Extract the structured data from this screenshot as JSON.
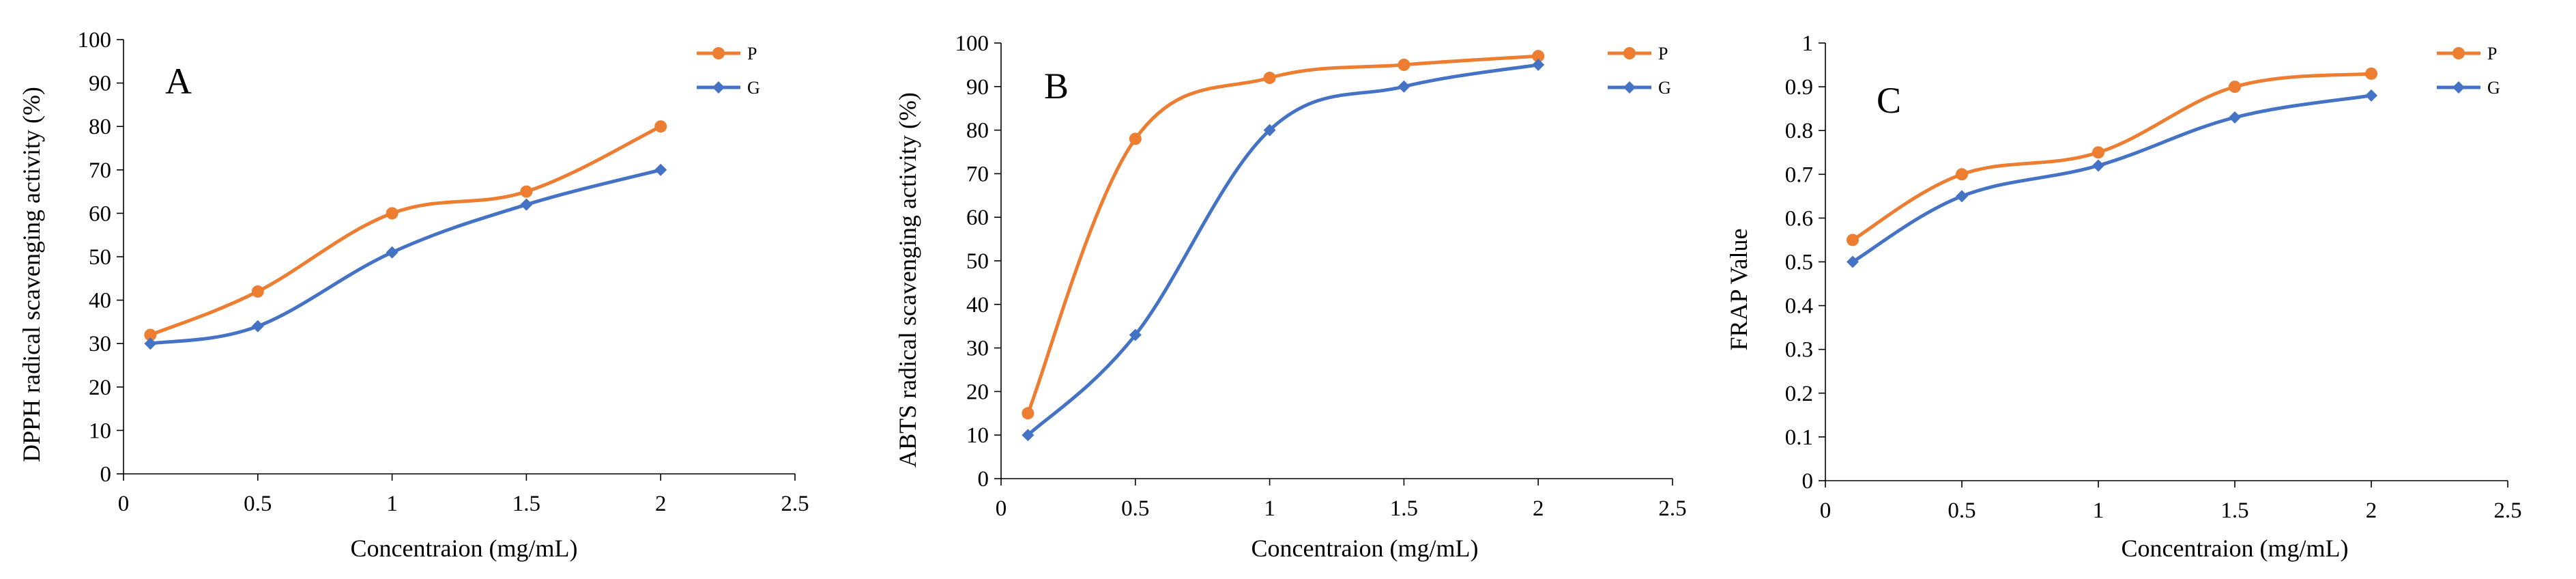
{
  "colors": {
    "P": "#ED7D31",
    "G": "#4472C4",
    "axis": "#000000"
  },
  "chart_data": [
    {
      "type": "line",
      "panel_label": "A",
      "title": "",
      "xlabel": "Concentraion (mg/mL)",
      "ylabel": "DPPH radical scavenging activity (%)",
      "xlim": [
        0,
        2.5
      ],
      "ylim": [
        0,
        100
      ],
      "x_ticks": [
        "0",
        "0.5",
        "1",
        "1.5",
        "2",
        "2.5"
      ],
      "y_ticks": [
        "0",
        "10",
        "20",
        "30",
        "40",
        "50",
        "60",
        "70",
        "80",
        "90",
        "100"
      ],
      "x": [
        0.1,
        0.5,
        1,
        1.5,
        2
      ],
      "grid": false,
      "legend": "top-right",
      "series": [
        {
          "name": "P",
          "marker": "circle",
          "values": [
            32,
            42,
            60,
            65,
            80
          ]
        },
        {
          "name": "G",
          "marker": "diamond",
          "values": [
            30,
            34,
            51,
            62,
            70
          ]
        }
      ]
    },
    {
      "type": "line",
      "panel_label": "B",
      "title": "",
      "xlabel": "Concentraion (mg/mL)",
      "ylabel": "ABTS radical scavenging activity (%)",
      "xlim": [
        0,
        2.5
      ],
      "ylim": [
        0,
        100
      ],
      "x_ticks": [
        "0",
        "0.5",
        "1",
        "1.5",
        "2",
        "2.5"
      ],
      "y_ticks": [
        "0",
        "10",
        "20",
        "30",
        "40",
        "50",
        "60",
        "70",
        "80",
        "90",
        "100"
      ],
      "x": [
        0.1,
        0.5,
        1,
        1.5,
        2
      ],
      "grid": false,
      "legend": "top-right",
      "series": [
        {
          "name": "P",
          "marker": "circle",
          "values": [
            15,
            78,
            92,
            95,
            97
          ]
        },
        {
          "name": "G",
          "marker": "diamond",
          "values": [
            10,
            33,
            80,
            90,
            95
          ]
        }
      ]
    },
    {
      "type": "line",
      "panel_label": "C",
      "title": "",
      "xlabel": "Concentraion (mg/mL)",
      "ylabel": "FRAP Value",
      "xlim": [
        0,
        2.5
      ],
      "ylim": [
        0,
        1
      ],
      "x_ticks": [
        "0",
        "0.5",
        "1",
        "1.5",
        "2",
        "2.5"
      ],
      "y_ticks": [
        "0",
        "0.1",
        "0.2",
        "0.3",
        "0.4",
        "0.5",
        "0.6",
        "0.7",
        "0.8",
        "0.9",
        "1"
      ],
      "x": [
        0.1,
        0.5,
        1,
        1.5,
        2
      ],
      "grid": false,
      "legend": "top-right",
      "series": [
        {
          "name": "P",
          "marker": "circle",
          "values": [
            0.55,
            0.7,
            0.75,
            0.9,
            0.93
          ]
        },
        {
          "name": "G",
          "marker": "diamond",
          "values": [
            0.5,
            0.65,
            0.72,
            0.83,
            0.88
          ]
        }
      ]
    }
  ]
}
